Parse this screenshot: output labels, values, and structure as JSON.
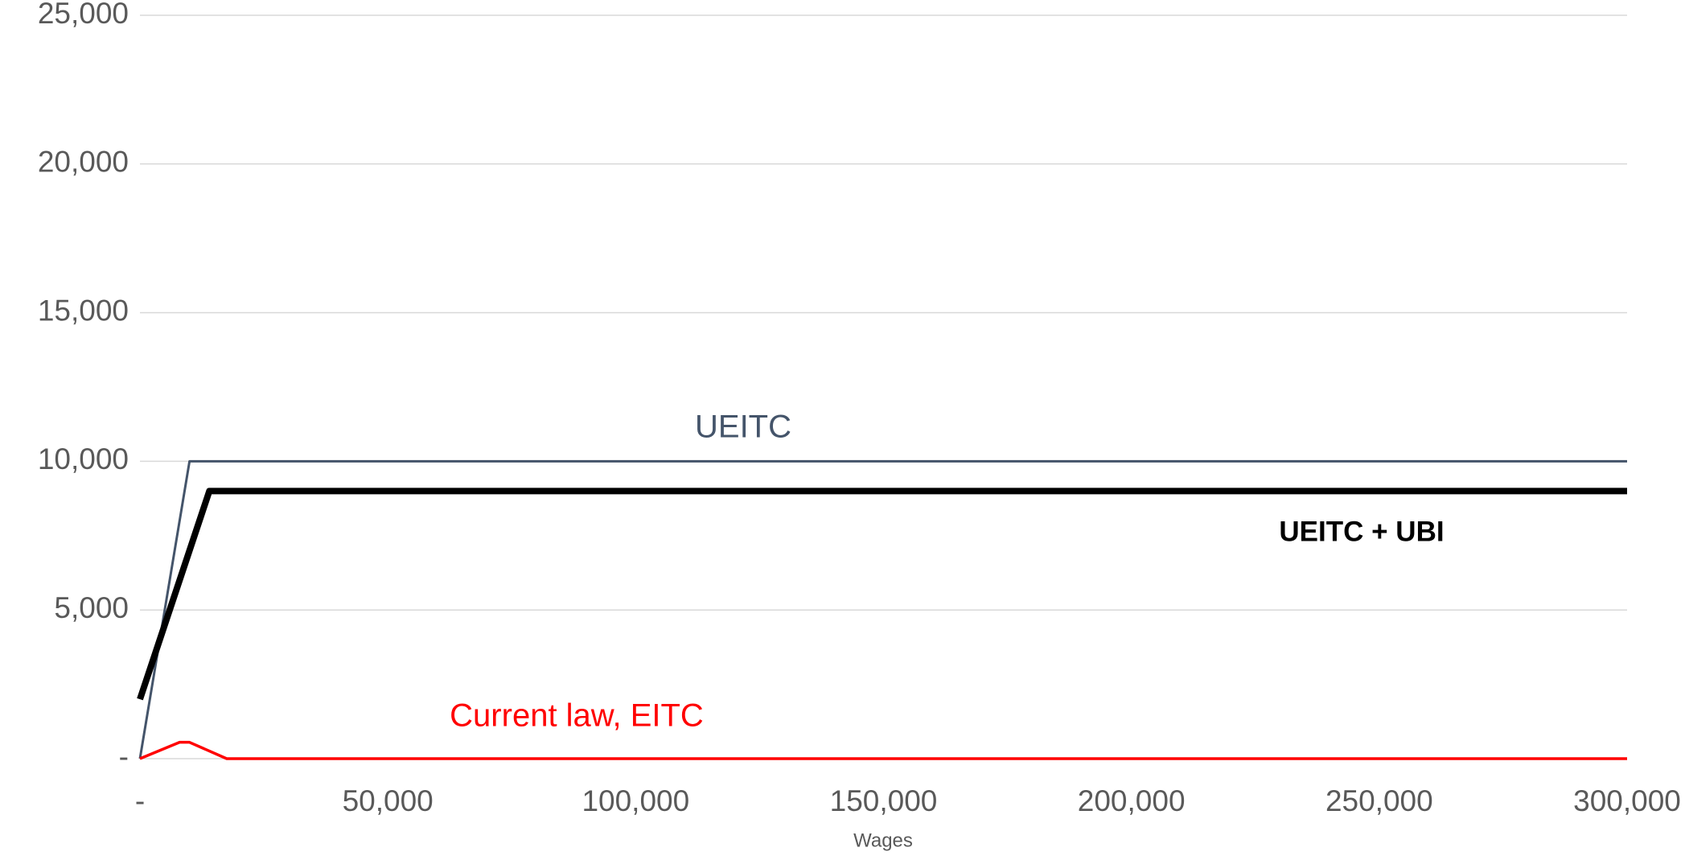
{
  "chart_data": {
    "type": "line",
    "x_label": "Wages",
    "xlim": [
      0,
      300000
    ],
    "xticks": [
      {
        "value": 0,
        "label": "-"
      },
      {
        "value": 50000,
        "label": "50,000"
      },
      {
        "value": 100000,
        "label": "100,000"
      },
      {
        "value": 150000,
        "label": "150,000"
      },
      {
        "value": 200000,
        "label": "200,000"
      },
      {
        "value": 250000,
        "label": "250,000"
      },
      {
        "value": 300000,
        "label": "300,000"
      }
    ],
    "ylim": [
      0,
      25000
    ],
    "yticks": [
      {
        "value": 0,
        "label": "-"
      },
      {
        "value": 5000,
        "label": "5,000"
      },
      {
        "value": 10000,
        "label": "10,000"
      },
      {
        "value": 15000,
        "label": "15,000"
      },
      {
        "value": 20000,
        "label": "20,000"
      },
      {
        "value": 25000,
        "label": "25,000"
      }
    ],
    "grid": true,
    "series": [
      {
        "name": "UEITC",
        "color": "#44546a",
        "x": [
          0,
          10000,
          300000
        ],
        "values": [
          0,
          10000,
          10000
        ]
      },
      {
        "name": "UEITC + UBI",
        "color": "#000000",
        "x": [
          0,
          14000,
          300000
        ],
        "values": [
          2000,
          9000,
          9000
        ]
      },
      {
        "name": "Current law, EITC",
        "color": "#ff0000",
        "x": [
          0,
          8000,
          10000,
          17500,
          300000
        ],
        "values": [
          0,
          550,
          550,
          0,
          0
        ]
      }
    ]
  }
}
